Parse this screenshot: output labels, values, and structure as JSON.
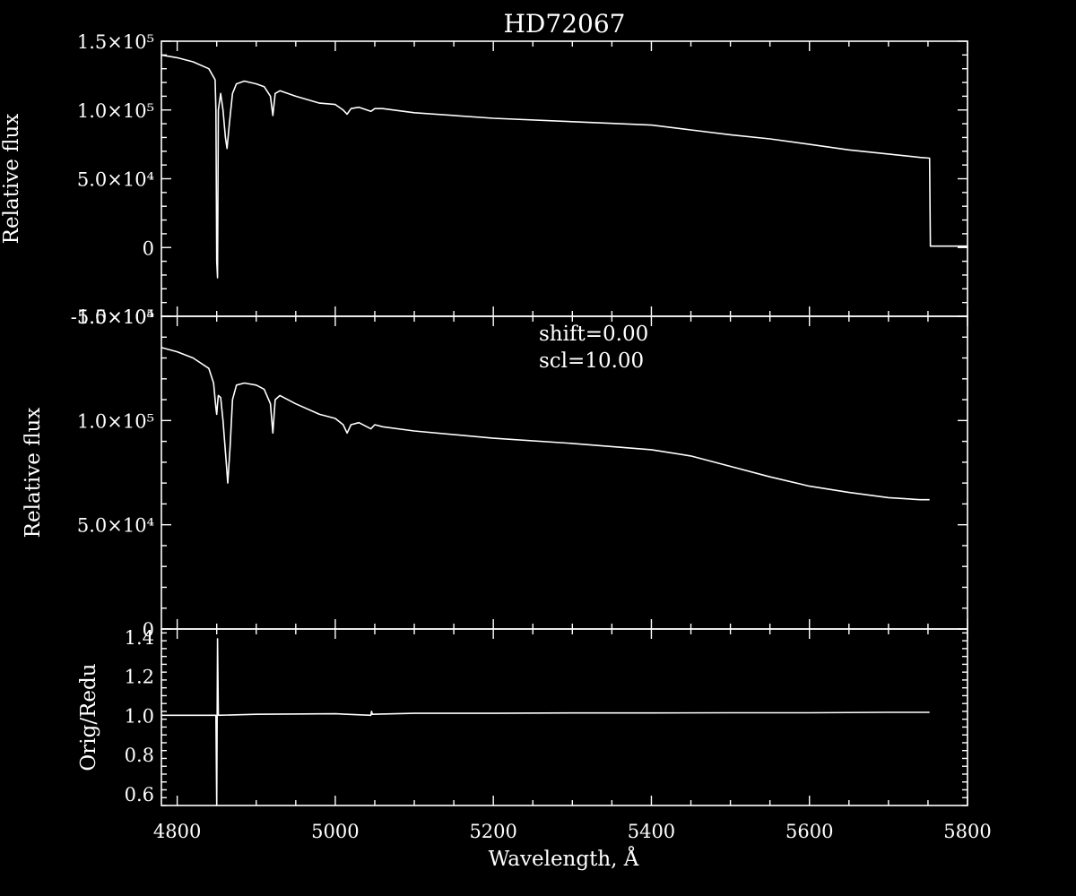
{
  "chart_data": [
    {
      "type": "line",
      "title": "HD72067",
      "xlabel": "",
      "ylabel": "Relative flux",
      "xlim": [
        4780,
        5800
      ],
      "ylim": [
        -50000,
        150000
      ],
      "y_tick_labels": [
        "-5.0×10⁴",
        "0",
        "5.0×10⁴",
        "1.0×10⁵",
        "1.5×10⁵"
      ],
      "x_tick_labels": [],
      "series": [
        {
          "x": [
            4780,
            4800,
            4820,
            4840,
            4848,
            4849,
            4850,
            4851,
            4852,
            4855,
            4858,
            4861,
            4863,
            4866,
            4870,
            4875,
            4885,
            4900,
            4910,
            4918,
            4921,
            4924,
            4930,
            4950,
            4980,
            5000,
            5010,
            5015,
            5020,
            5030,
            5040,
            5045,
            5050,
            5060,
            5100,
            5200,
            5300,
            5400,
            5450,
            5500,
            5550,
            5600,
            5650,
            5700,
            5740,
            5752,
            5753,
            5800
          ],
          "y": [
            140000,
            138000,
            135000,
            130000,
            122000,
            100000,
            -10000,
            -22000,
            100000,
            112000,
            100000,
            80000,
            72000,
            90000,
            112000,
            119000,
            121000,
            119000,
            117000,
            110000,
            96000,
            112000,
            114000,
            110000,
            105000,
            104000,
            100000,
            97000,
            101000,
            102000,
            100000,
            99000,
            101000,
            101000,
            98000,
            94000,
            91500,
            89000,
            85500,
            82000,
            79000,
            75000,
            71000,
            68000,
            65500,
            65000,
            1000,
            1000
          ]
        }
      ]
    },
    {
      "type": "line",
      "title": "",
      "xlabel": "",
      "ylabel": "Relative flux",
      "xlim": [
        4780,
        5800
      ],
      "ylim": [
        0,
        150000
      ],
      "y_tick_labels": [
        "0",
        "5.0×10⁴",
        "1.0×10⁵",
        "1.5×10⁵"
      ],
      "x_tick_labels": [],
      "annotations": [
        "shift=0.00",
        "scl=10.00"
      ],
      "series": [
        {
          "x": [
            4780,
            4800,
            4820,
            4840,
            4846,
            4849,
            4850,
            4851,
            4852,
            4855,
            4858,
            4862,
            4864,
            4867,
            4870,
            4875,
            4885,
            4900,
            4910,
            4918,
            4921,
            4924,
            4930,
            4950,
            4980,
            5000,
            5010,
            5015,
            5020,
            5030,
            5040,
            5045,
            5050,
            5060,
            5100,
            5200,
            5300,
            5400,
            5450,
            5500,
            5550,
            5600,
            5650,
            5700,
            5740,
            5752
          ],
          "y": [
            135000,
            133000,
            130000,
            125000,
            118000,
            106000,
            103000,
            108000,
            112000,
            111000,
            100000,
            80000,
            70000,
            88000,
            110000,
            117000,
            118000,
            117000,
            115000,
            108000,
            94000,
            110000,
            112000,
            108000,
            103000,
            101000,
            98000,
            94000,
            98000,
            99000,
            97000,
            96000,
            98000,
            97000,
            95000,
            91500,
            89000,
            86000,
            83000,
            78000,
            73000,
            68500,
            65500,
            63000,
            62000,
            62000
          ]
        }
      ]
    },
    {
      "type": "line",
      "title": "",
      "xlabel": "Wavelength, Å",
      "ylabel": "Orig/Redu",
      "xlim": [
        4780,
        5800
      ],
      "ylim": [
        0.54,
        1.44
      ],
      "y_tick_labels": [
        "0.6",
        "0.8",
        "1.0",
        "1.2",
        "1.4"
      ],
      "x_tick_labels": [
        "4800",
        "5000",
        "5200",
        "5400",
        "5600",
        "5800"
      ],
      "series": [
        {
          "x": [
            4780,
            4848,
            4849,
            4850,
            4851,
            4852,
            4900,
            5000,
            5045,
            5046,
            5047,
            5100,
            5200,
            5300,
            5400,
            5500,
            5600,
            5700,
            5752
          ],
          "y": [
            1.0,
            1.0,
            1.0,
            0.54,
            1.39,
            1.0,
            1.005,
            1.008,
            1.0,
            1.02,
            1.005,
            1.01,
            1.01,
            1.012,
            1.012,
            1.013,
            1.013,
            1.015,
            1.015
          ]
        }
      ]
    }
  ]
}
